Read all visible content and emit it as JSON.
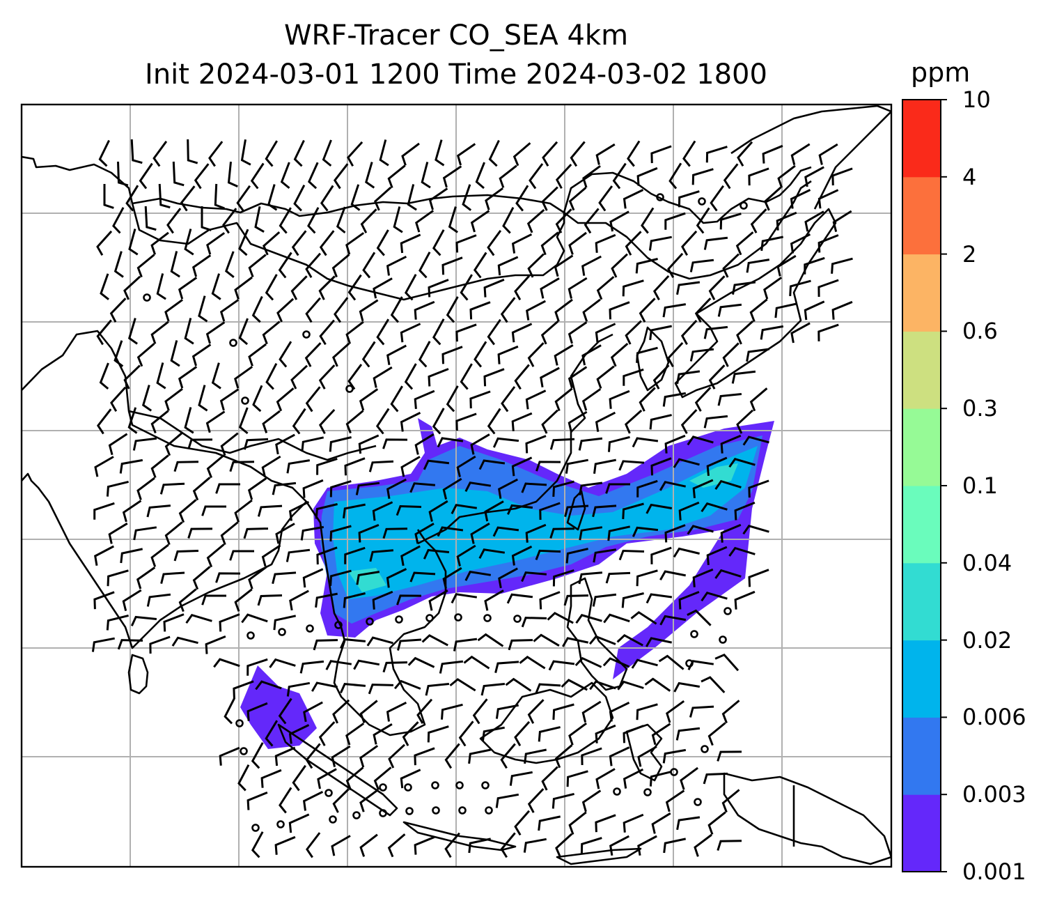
{
  "title": {
    "line1": "WRF-Tracer CO_SEA 4km",
    "line2": "Init 2024-03-01 1200 Time 2024-03-02 1800"
  },
  "colorbar": {
    "unit": "ppm",
    "levels": [
      "0.001",
      "0.003",
      "0.006",
      "0.02",
      "0.04",
      "0.1",
      "0.3",
      "0.6",
      "2",
      "4",
      "10"
    ],
    "colors": [
      "#6428fa",
      "#3278f0",
      "#00b4ec",
      "#32dcd2",
      "#6afcbc",
      "#96fa96",
      "#cde080",
      "#fcb464",
      "#fc703c",
      "#fa2a1a"
    ]
  },
  "map": {
    "coastline_color": "#000000",
    "gridline_color": "#b0b0b0",
    "grid": true,
    "wind_barb_color": "#000000",
    "plume_color_low": "#6428fa",
    "plume_color_mid": "#3278f0",
    "plume_color_high": "#00b4ec",
    "plume_color_peak": "#32dcd2"
  }
}
